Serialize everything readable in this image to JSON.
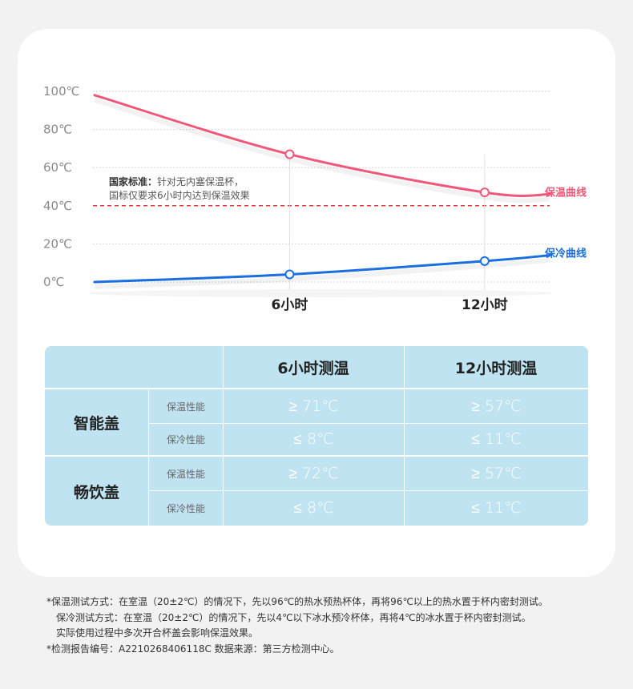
{
  "chart_data": {
    "type": "line",
    "x_ticks": [
      "6小时",
      "12小时"
    ],
    "y_ticks": [
      "100℃",
      "80℃",
      "60℃",
      "40℃",
      "20℃",
      "0℃"
    ],
    "ylim": [
      0,
      100
    ],
    "x_range_hours": [
      0,
      14
    ],
    "grid": "dotted horizontal",
    "series": [
      {
        "name": "保温曲线",
        "color": "#f0587a",
        "points": [
          [
            0,
            98
          ],
          [
            6,
            67
          ],
          [
            12,
            47
          ],
          [
            14,
            46
          ]
        ],
        "markers": [
          [
            6,
            67
          ],
          [
            12,
            47
          ]
        ]
      },
      {
        "name": "保冷曲线",
        "color": "#1a6fe0",
        "points": [
          [
            0,
            0
          ],
          [
            6,
            4
          ],
          [
            12,
            11
          ],
          [
            14,
            14
          ]
        ],
        "markers": [
          [
            6,
            4
          ],
          [
            12,
            11
          ]
        ]
      }
    ],
    "reference_line": {
      "value": 40,
      "color": "#e23b3b",
      "style": "dashed"
    },
    "annotation": {
      "bold": "国家标准：",
      "line1": "针对无内塞保温杯，",
      "line2": "国标仅要求6小时内达到保温效果"
    }
  },
  "table": {
    "headers": [
      "6小时测温",
      "12小时测温"
    ],
    "products": [
      {
        "name": "智能盖",
        "rows": [
          {
            "label": "保温性能",
            "h6": "≥ 71℃",
            "h12": "≥ 57℃"
          },
          {
            "label": "保冷性能",
            "h6": "≤ 8℃",
            "h12": "≤ 11℃"
          }
        ]
      },
      {
        "name": "畅饮盖",
        "rows": [
          {
            "label": "保温性能",
            "h6": "≥ 72℃",
            "h12": "≥ 57℃"
          },
          {
            "label": "保冷性能",
            "h6": "≤ 8℃",
            "h12": "≤ 11℃"
          }
        ]
      }
    ]
  },
  "footnotes": [
    "*保温测试方式：在室温（20±2℃）的情况下，先以96℃的热水预热杯体，再将96℃以上的热水置于杯内密封测试。",
    "保冷测试方式：在室温（20±2℃）的情况下，先以4℃以下冰水预冷杯体，再将4℃的冰水置于杯内密封测试。",
    "实际使用过程中多次开合杯盖会影响保温效果。",
    "*检测报告编号：A2210268406118C 数据来源：第三方检测中心。"
  ]
}
